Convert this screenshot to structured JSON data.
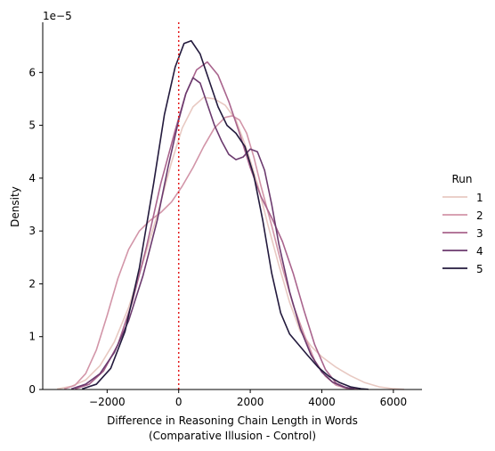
{
  "chart_data": {
    "type": "line",
    "subtype": "kde",
    "title": "",
    "xlabel_line1": "Difference in Reasoning Chain Length in Words",
    "xlabel_line2": "(Comparative Illusion - Control)",
    "ylabel": "Density",
    "y_offset_label": "1e−5",
    "xlim": [
      -3800,
      6800
    ],
    "ylim": [
      0,
      6.95
    ],
    "xticks": [
      -2000,
      0,
      2000,
      4000,
      6000
    ],
    "xtick_labels": [
      "−2000",
      "0",
      "2000",
      "4000",
      "6000"
    ],
    "yticks": [
      0,
      1,
      2,
      3,
      4,
      5,
      6
    ],
    "ytick_labels": [
      "0",
      "1",
      "2",
      "3",
      "4",
      "5",
      "6"
    ],
    "reference_line": {
      "x": 0,
      "color": "#e41a1c",
      "style": "dotted"
    },
    "grid": false,
    "legend": {
      "title": "Run",
      "placement": "right"
    },
    "series": [
      {
        "name": "1",
        "color": "#e8c9c2",
        "points": [
          [
            -3400,
            0.01
          ],
          [
            -3000,
            0.06
          ],
          [
            -2600,
            0.18
          ],
          [
            -2200,
            0.45
          ],
          [
            -1800,
            0.9
          ],
          [
            -1400,
            1.55
          ],
          [
            -1000,
            2.4
          ],
          [
            -600,
            3.3
          ],
          [
            -200,
            4.3
          ],
          [
            100,
            4.95
          ],
          [
            400,
            5.35
          ],
          [
            700,
            5.53
          ],
          [
            1000,
            5.5
          ],
          [
            1300,
            5.38
          ],
          [
            1600,
            5.1
          ],
          [
            1900,
            4.55
          ],
          [
            2200,
            3.9
          ],
          [
            2500,
            3.1
          ],
          [
            2800,
            2.35
          ],
          [
            3100,
            1.65
          ],
          [
            3400,
            1.1
          ],
          [
            3700,
            0.82
          ],
          [
            4000,
            0.62
          ],
          [
            4400,
            0.42
          ],
          [
            4800,
            0.26
          ],
          [
            5200,
            0.13
          ],
          [
            5600,
            0.05
          ],
          [
            6000,
            0.015
          ],
          [
            6300,
            0.003
          ]
        ]
      },
      {
        "name": "2",
        "color": "#d295a8",
        "points": [
          [
            -3200,
            0.01
          ],
          [
            -2900,
            0.08
          ],
          [
            -2600,
            0.3
          ],
          [
            -2300,
            0.75
          ],
          [
            -2000,
            1.4
          ],
          [
            -1700,
            2.1
          ],
          [
            -1400,
            2.65
          ],
          [
            -1100,
            3.0
          ],
          [
            -800,
            3.2
          ],
          [
            -500,
            3.35
          ],
          [
            -200,
            3.55
          ],
          [
            100,
            3.85
          ],
          [
            400,
            4.2
          ],
          [
            700,
            4.6
          ],
          [
            1000,
            4.95
          ],
          [
            1300,
            5.15
          ],
          [
            1500,
            5.18
          ],
          [
            1700,
            5.1
          ],
          [
            1900,
            4.85
          ],
          [
            2100,
            4.4
          ],
          [
            2300,
            3.85
          ],
          [
            2600,
            3.1
          ],
          [
            2900,
            2.3
          ],
          [
            3200,
            1.6
          ],
          [
            3500,
            1.05
          ],
          [
            3800,
            0.55
          ],
          [
            4100,
            0.25
          ],
          [
            4400,
            0.08
          ],
          [
            4700,
            0.02
          ],
          [
            5000,
            0.003
          ]
        ]
      },
      {
        "name": "3",
        "color": "#a9648d",
        "points": [
          [
            -2900,
            0.01
          ],
          [
            -2500,
            0.1
          ],
          [
            -2100,
            0.35
          ],
          [
            -1700,
            0.85
          ],
          [
            -1300,
            1.65
          ],
          [
            -900,
            2.7
          ],
          [
            -500,
            3.9
          ],
          [
            -100,
            4.9
          ],
          [
            200,
            5.6
          ],
          [
            500,
            6.05
          ],
          [
            800,
            6.2
          ],
          [
            1100,
            5.95
          ],
          [
            1400,
            5.45
          ],
          [
            1700,
            4.85
          ],
          [
            2000,
            4.2
          ],
          [
            2300,
            3.65
          ],
          [
            2600,
            3.25
          ],
          [
            2900,
            2.8
          ],
          [
            3200,
            2.2
          ],
          [
            3500,
            1.5
          ],
          [
            3800,
            0.85
          ],
          [
            4100,
            0.38
          ],
          [
            4400,
            0.12
          ],
          [
            4700,
            0.03
          ],
          [
            5000,
            0.005
          ]
        ]
      },
      {
        "name": "4",
        "color": "#6b3a6e",
        "points": [
          [
            -3000,
            0.01
          ],
          [
            -2600,
            0.1
          ],
          [
            -2200,
            0.3
          ],
          [
            -1800,
            0.7
          ],
          [
            -1400,
            1.3
          ],
          [
            -1000,
            2.15
          ],
          [
            -600,
            3.2
          ],
          [
            -300,
            4.2
          ],
          [
            0,
            5.1
          ],
          [
            200,
            5.6
          ],
          [
            400,
            5.9
          ],
          [
            600,
            5.8
          ],
          [
            800,
            5.4
          ],
          [
            1000,
            5.0
          ],
          [
            1200,
            4.7
          ],
          [
            1400,
            4.45
          ],
          [
            1600,
            4.35
          ],
          [
            1800,
            4.4
          ],
          [
            2000,
            4.55
          ],
          [
            2200,
            4.5
          ],
          [
            2400,
            4.15
          ],
          [
            2600,
            3.5
          ],
          [
            2800,
            2.75
          ],
          [
            3100,
            1.85
          ],
          [
            3400,
            1.15
          ],
          [
            3700,
            0.65
          ],
          [
            4000,
            0.33
          ],
          [
            4300,
            0.14
          ],
          [
            4600,
            0.05
          ],
          [
            4900,
            0.01
          ]
        ]
      },
      {
        "name": "5",
        "color": "#231a3d",
        "points": [
          [
            -2700,
            0.01
          ],
          [
            -2300,
            0.1
          ],
          [
            -1900,
            0.4
          ],
          [
            -1500,
            1.1
          ],
          [
            -1100,
            2.3
          ],
          [
            -700,
            3.9
          ],
          [
            -400,
            5.2
          ],
          [
            -100,
            6.1
          ],
          [
            150,
            6.55
          ],
          [
            350,
            6.6
          ],
          [
            600,
            6.35
          ],
          [
            850,
            5.85
          ],
          [
            1100,
            5.35
          ],
          [
            1350,
            5.0
          ],
          [
            1600,
            4.85
          ],
          [
            1850,
            4.6
          ],
          [
            2100,
            4.05
          ],
          [
            2350,
            3.2
          ],
          [
            2600,
            2.2
          ],
          [
            2850,
            1.45
          ],
          [
            3100,
            1.05
          ],
          [
            3350,
            0.85
          ],
          [
            3600,
            0.65
          ],
          [
            3900,
            0.42
          ],
          [
            4200,
            0.25
          ],
          [
            4500,
            0.13
          ],
          [
            4800,
            0.05
          ],
          [
            5100,
            0.015
          ],
          [
            5300,
            0.003
          ]
        ]
      }
    ]
  }
}
